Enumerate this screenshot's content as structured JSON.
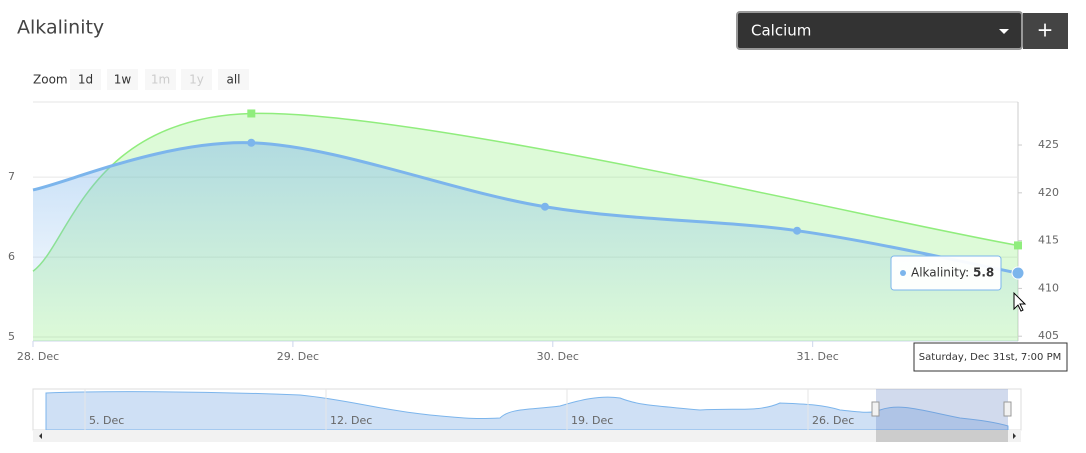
{
  "header": {
    "title": "Alkalinity",
    "dropdown": "Calcium",
    "add_button": "+"
  },
  "zoom": {
    "label": "Zoom",
    "buttons": [
      "1d",
      "1w",
      "1m",
      "1y",
      "all"
    ],
    "disabled": [
      "1m",
      "1y"
    ]
  },
  "chart_data": {
    "type": "line",
    "xlim": [
      0,
      3.79
    ],
    "xticks": [
      {
        "value": 0,
        "label": "28. Dec"
      },
      {
        "value": 1,
        "label": "29. Dec"
      },
      {
        "value": 2,
        "label": "30. Dec"
      },
      {
        "value": 3,
        "label": "31. Dec"
      }
    ],
    "ylim": [
      4.95,
      7.94
    ],
    "yticks": [
      5,
      6,
      7
    ],
    "y2lim": [
      404.5,
      429.5
    ],
    "y2ticks": [
      405,
      410,
      415,
      420,
      425
    ],
    "grid": true,
    "series": [
      {
        "name": "Alkalinity",
        "color": "#7cb5ec",
        "x": [
          0,
          0.84,
          1.97,
          2.94,
          3.79
        ],
        "values": [
          6.84,
          7.43,
          6.63,
          6.33,
          5.8
        ]
      },
      {
        "name": "Calcium",
        "color": "#90ed7d",
        "axis": "y2",
        "x": [
          0,
          0.84,
          3.79
        ],
        "values": [
          411.8,
          428.3,
          414.5
        ]
      }
    ],
    "tooltip": {
      "label": "Alkalinity:",
      "x_label": "Saturday, Dec 31st, 7:00 PM"
    }
  },
  "navigator": {
    "labels": [
      "5. Dec",
      "12. Dec",
      "19. Dec",
      "26. Dec"
    ]
  }
}
